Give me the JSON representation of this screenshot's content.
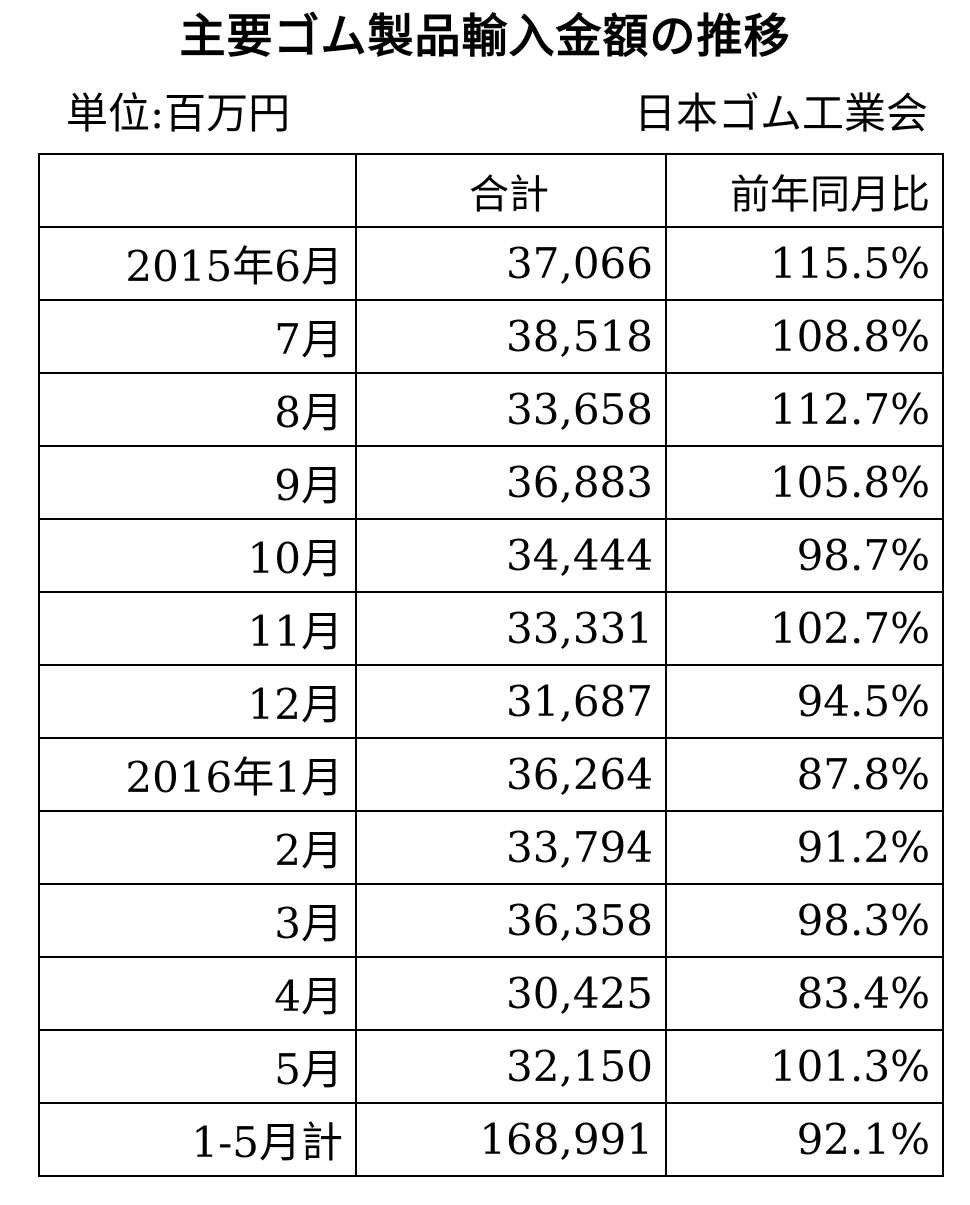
{
  "title": "主要ゴム製品輸入金額の推移",
  "unit_label": "単位:百万円",
  "source": "日本ゴム工業会",
  "table": {
    "headers": [
      "",
      "合計",
      "前年同月比"
    ],
    "rows": [
      {
        "period": "2015年6月",
        "total": "37,066",
        "yoy": "115.5%"
      },
      {
        "period": "7月",
        "total": "38,518",
        "yoy": "108.8%"
      },
      {
        "period": "8月",
        "total": "33,658",
        "yoy": "112.7%"
      },
      {
        "period": "9月",
        "total": "36,883",
        "yoy": "105.8%"
      },
      {
        "period": "10月",
        "total": "34,444",
        "yoy": "98.7%"
      },
      {
        "period": "11月",
        "total": "33,331",
        "yoy": "102.7%"
      },
      {
        "period": "12月",
        "total": "31,687",
        "yoy": "94.5%"
      },
      {
        "period": "2016年1月",
        "total": "36,264",
        "yoy": "87.8%"
      },
      {
        "period": "2月",
        "total": "33,794",
        "yoy": "91.2%"
      },
      {
        "period": "3月",
        "total": "36,358",
        "yoy": "98.3%"
      },
      {
        "period": "4月",
        "total": "30,425",
        "yoy": "83.4%"
      },
      {
        "period": "5月",
        "total": "32,150",
        "yoy": "101.3%"
      },
      {
        "period": "1-5月計",
        "total": "168,991",
        "yoy": "92.1%"
      }
    ]
  }
}
